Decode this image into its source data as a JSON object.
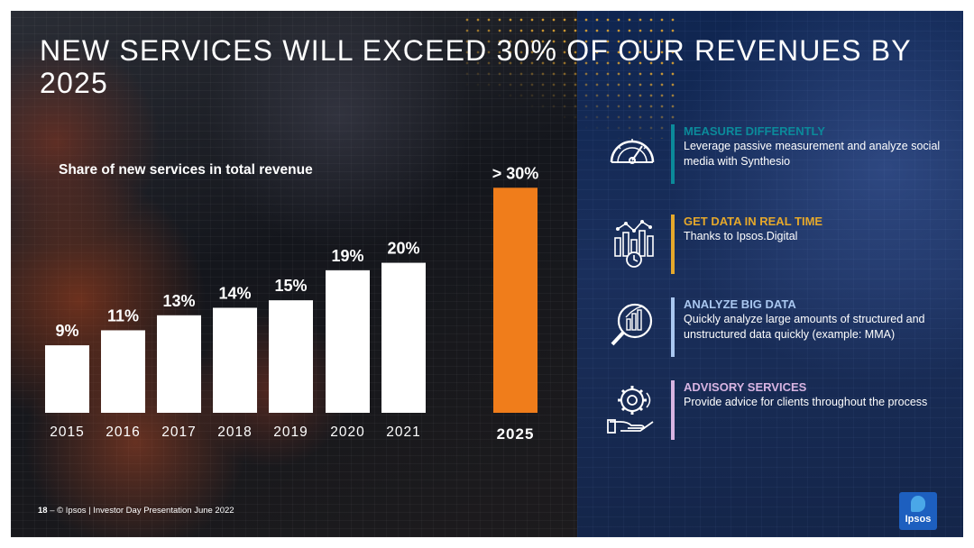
{
  "title": "NEW SERVICES WILL EXCEED 30% OF OUR REVENUES BY 2025",
  "chart_data": {
    "type": "bar",
    "title": "Share of new services in total revenue",
    "categories": [
      "2015",
      "2016",
      "2017",
      "2018",
      "2019",
      "2020",
      "2021",
      "2025"
    ],
    "values": [
      9,
      11,
      13,
      14,
      15,
      19,
      20,
      30
    ],
    "value_labels": [
      "9%",
      "11%",
      "13%",
      "14%",
      "15%",
      "19%",
      "20%",
      "> 30%"
    ],
    "unit": "%",
    "highlight_category": "2025",
    "colors": {
      "bars": "#ffffff",
      "highlight": "#f07d1b"
    },
    "ylim": [
      0,
      31
    ],
    "grid": false,
    "legend": "none"
  },
  "services": [
    {
      "heading": "MEASURE DIFFERENTLY",
      "description": "Leverage passive measurement and analyze social media with Synthesio",
      "color": "#0b8a9a",
      "icon": "gauge-icon"
    },
    {
      "heading": "GET DATA IN REAL TIME",
      "description": "Thanks to Ipsos.Digital",
      "color": "#e5a82b",
      "icon": "realtime-chart-icon"
    },
    {
      "heading": "ANALYZE BIG DATA",
      "description": "Quickly analyze large amounts of structured and unstructured data quickly (example: MMA)",
      "color": "#a9c7f0",
      "icon": "magnifier-chart-icon"
    },
    {
      "heading": "ADVISORY SERVICES",
      "description": "Provide advice for clients throughout the process",
      "color": "#d8b4e2",
      "icon": "gear-hand-icon"
    }
  ],
  "footer": {
    "page_number": "18",
    "separator": "–",
    "text": "© Ipsos | Investor Day Presentation June 2022"
  },
  "logo": {
    "text": "Ipsos"
  }
}
